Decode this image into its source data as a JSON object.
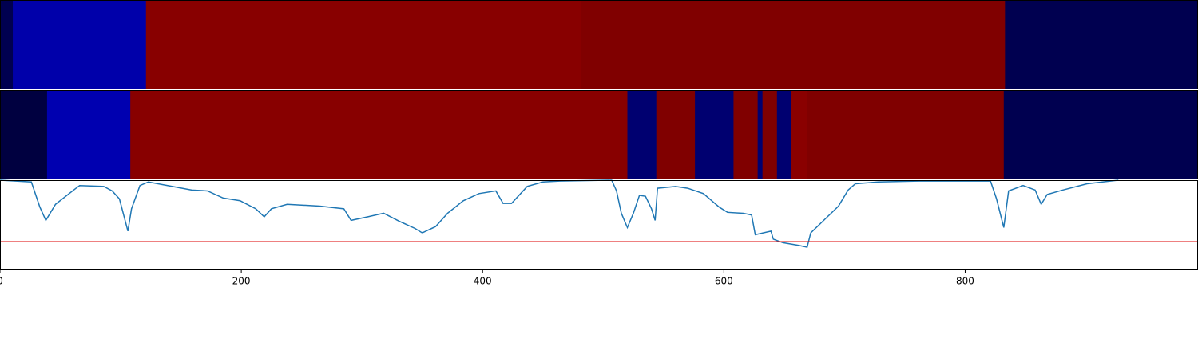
{
  "chart_data": [
    {
      "type": "strip",
      "xlim": [
        0,
        993
      ],
      "segments": [
        {
          "start": 0,
          "end": 10.6,
          "color": "#000050"
        },
        {
          "start": 10.6,
          "end": 121,
          "color": "#0000aa"
        },
        {
          "start": 121,
          "end": 482,
          "color": "#880000"
        },
        {
          "start": 482,
          "end": 833,
          "color": "#800000"
        },
        {
          "start": 833,
          "end": 993,
          "color": "#000050"
        }
      ]
    },
    {
      "type": "strip",
      "xlim": [
        0,
        993
      ],
      "segments": [
        {
          "start": 0,
          "end": 39,
          "color": "#000040"
        },
        {
          "start": 39,
          "end": 108,
          "color": "#0000b0"
        },
        {
          "start": 108,
          "end": 520,
          "color": "#880000"
        },
        {
          "start": 520,
          "end": 544,
          "color": "#000070"
        },
        {
          "start": 544,
          "end": 576,
          "color": "#800000"
        },
        {
          "start": 576,
          "end": 608,
          "color": "#000070"
        },
        {
          "start": 608,
          "end": 628,
          "color": "#800000"
        },
        {
          "start": 628,
          "end": 632,
          "color": "#000070"
        },
        {
          "start": 632,
          "end": 644,
          "color": "#800000"
        },
        {
          "start": 644,
          "end": 656,
          "color": "#000070"
        },
        {
          "start": 656,
          "end": 669,
          "color": "#8a0000"
        },
        {
          "start": 669,
          "end": 832,
          "color": "#800000"
        },
        {
          "start": 832,
          "end": 993,
          "color": "#000050"
        }
      ]
    },
    {
      "type": "line",
      "xlim": [
        0,
        993
      ],
      "ylim": [
        0,
        1
      ],
      "xticks": [
        0,
        200,
        400,
        600,
        800
      ],
      "color": "#1f77b4",
      "threshold": 0.31,
      "threshold_color": "#dd0000",
      "x": [
        0,
        26,
        33,
        38,
        46,
        63,
        66,
        86,
        93,
        99,
        106,
        109,
        116,
        123,
        139,
        159,
        172,
        185,
        199,
        212,
        219,
        225,
        238,
        265,
        285,
        291,
        305,
        318,
        331,
        344,
        350,
        361,
        371,
        384,
        397,
        411,
        417,
        424,
        437,
        450,
        464,
        507,
        511,
        515,
        520,
        525,
        530,
        535,
        540,
        543,
        545,
        560,
        570,
        583,
        596,
        603,
        616,
        623,
        626,
        639,
        641,
        649,
        662,
        669,
        672,
        682,
        695,
        703,
        709,
        728,
        762,
        821,
        826,
        832,
        836,
        848,
        858,
        863,
        868,
        881,
        901,
        927
      ],
      "values": [
        1.0,
        0.98,
        0.7,
        0.55,
        0.73,
        0.91,
        0.94,
        0.93,
        0.88,
        0.79,
        0.43,
        0.68,
        0.94,
        0.98,
        0.94,
        0.89,
        0.88,
        0.8,
        0.77,
        0.68,
        0.59,
        0.68,
        0.73,
        0.71,
        0.68,
        0.55,
        0.59,
        0.63,
        0.54,
        0.46,
        0.41,
        0.48,
        0.63,
        0.77,
        0.85,
        0.88,
        0.74,
        0.74,
        0.93,
        0.98,
        0.99,
        1.0,
        0.88,
        0.63,
        0.47,
        0.63,
        0.83,
        0.82,
        0.68,
        0.55,
        0.91,
        0.93,
        0.91,
        0.85,
        0.7,
        0.64,
        0.63,
        0.61,
        0.39,
        0.43,
        0.34,
        0.3,
        0.27,
        0.25,
        0.41,
        0.54,
        0.71,
        0.89,
        0.96,
        0.98,
        0.99,
        0.99,
        0.79,
        0.47,
        0.88,
        0.94,
        0.89,
        0.73,
        0.84,
        0.89,
        0.96,
        1.0
      ]
    }
  ]
}
